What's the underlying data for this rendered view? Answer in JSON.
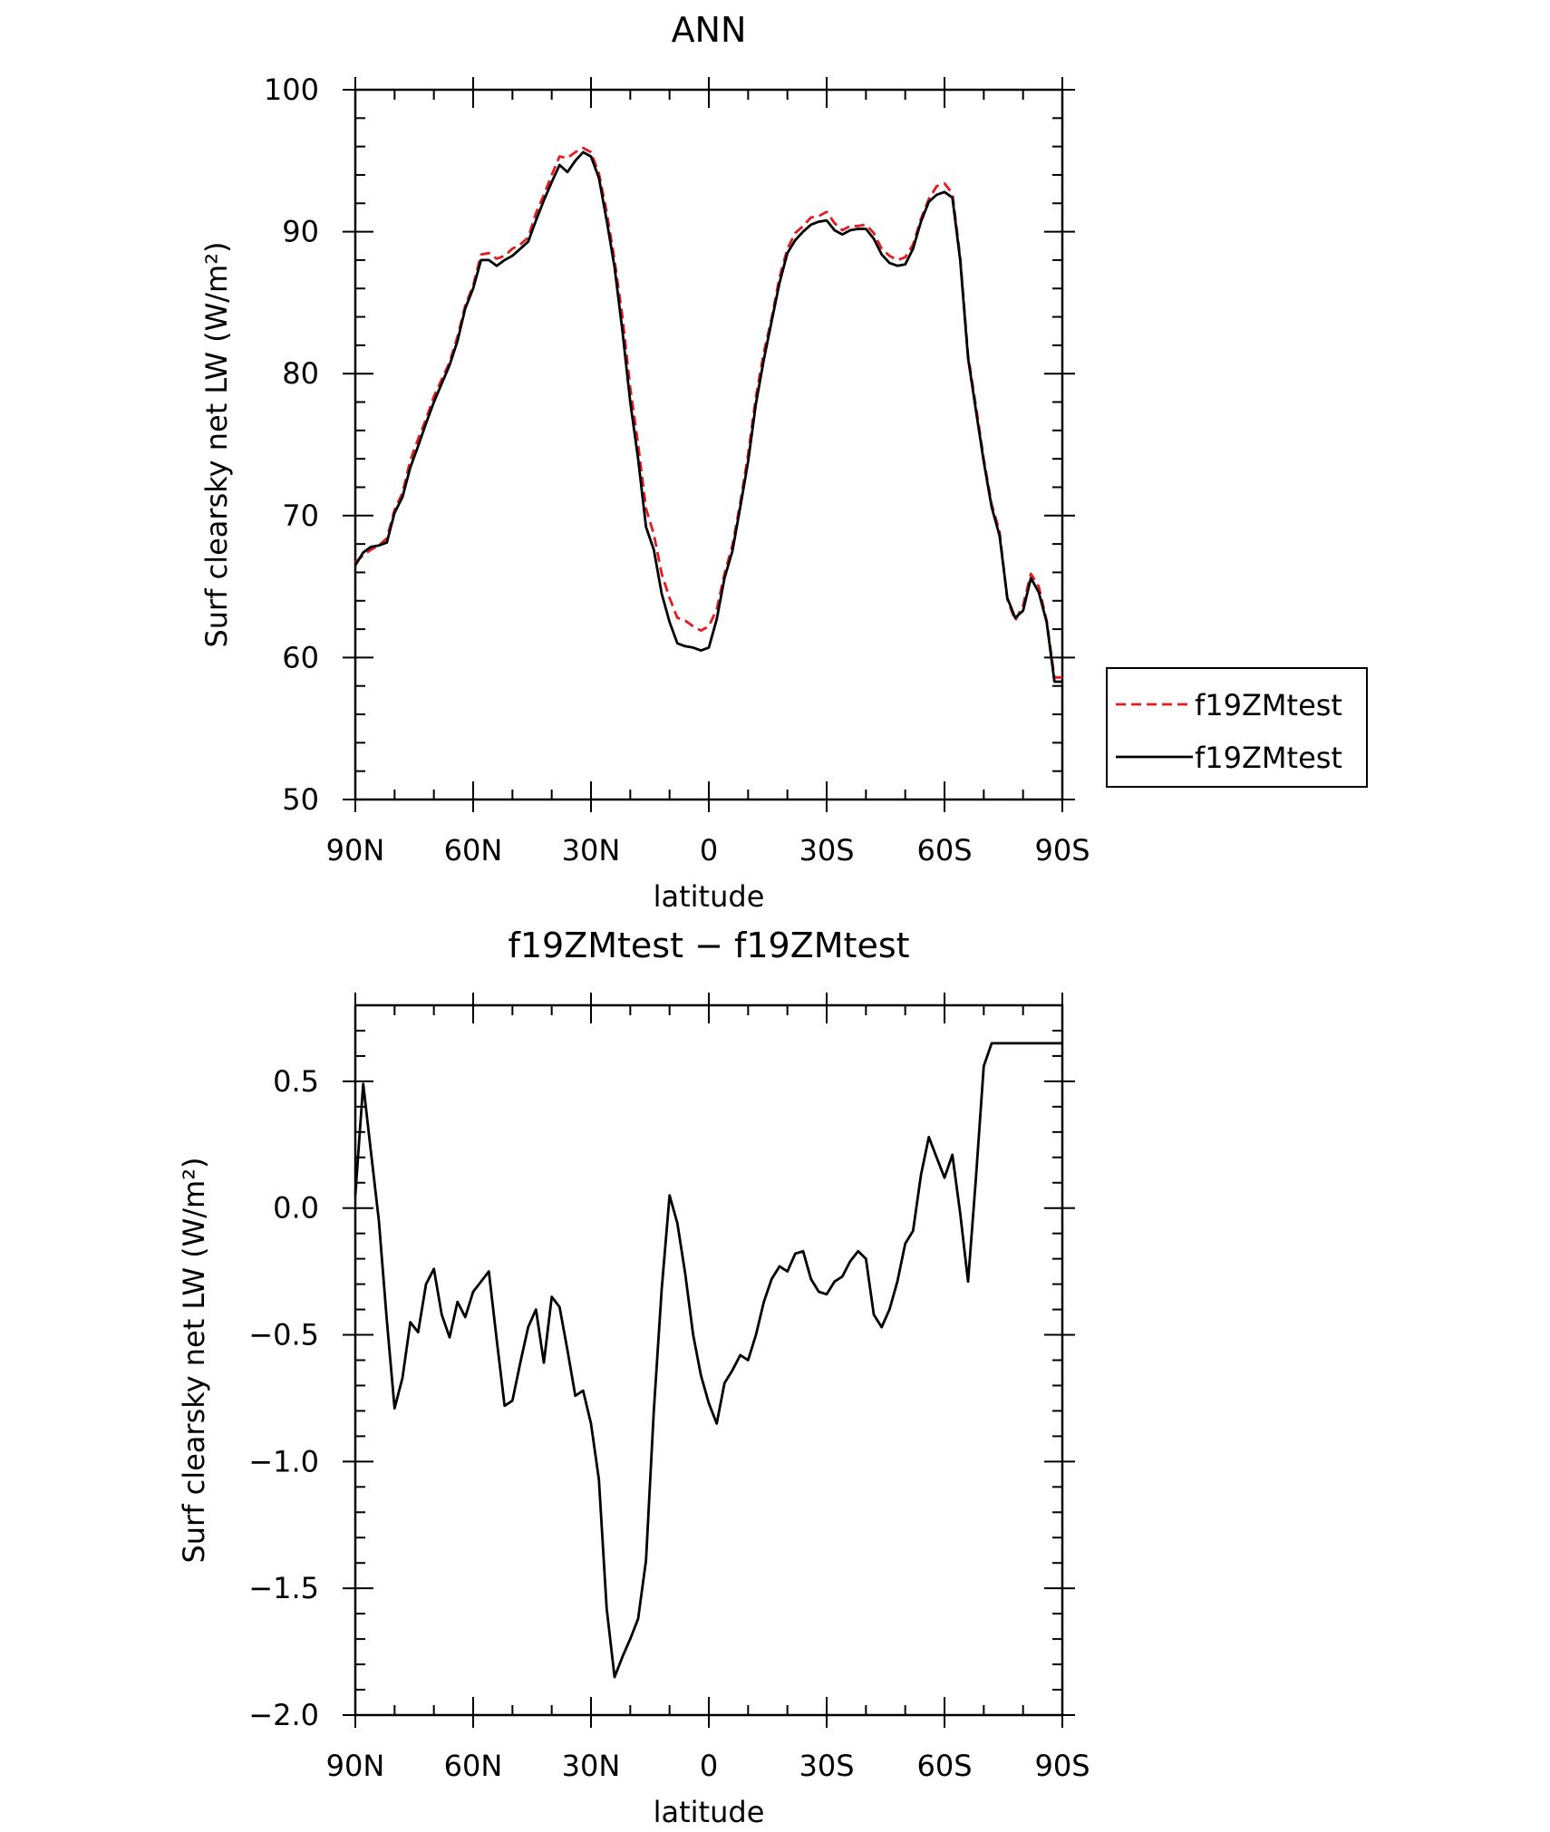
{
  "chart_data": [
    {
      "type": "line",
      "title": "ANN",
      "xlabel": "latitude",
      "ylabel": "Surf clearsky net LW (W/m²)",
      "xlim": [
        90,
        -90
      ],
      "ylim": [
        50,
        100
      ],
      "xticks": [
        90,
        60,
        30,
        0,
        -30,
        -60,
        -90
      ],
      "xtick_labels": [
        "90N",
        "60N",
        "30N",
        "0",
        "30S",
        "60S",
        "90S"
      ],
      "yticks": [
        50,
        60,
        70,
        80,
        90,
        100
      ],
      "ytick_labels": [
        "50",
        "60",
        "70",
        "80",
        "90",
        "100"
      ],
      "legend_position": "right",
      "series": [
        {
          "name": "f19ZMtest",
          "color": "#e41a1c",
          "dash": "dashed",
          "x": [
            90,
            88,
            86,
            84,
            82,
            80,
            78,
            76,
            74,
            72,
            70,
            68,
            66,
            64,
            62,
            60,
            58,
            56,
            54,
            52,
            50,
            48,
            46,
            44,
            42,
            40,
            38,
            36,
            34,
            32,
            30,
            28,
            26,
            24,
            22,
            20,
            18,
            16,
            14,
            12,
            10,
            8,
            6,
            4,
            2,
            0,
            -2,
            -4,
            -6,
            -8,
            -10,
            -12,
            -14,
            -16,
            -18,
            -20,
            -22,
            -24,
            -26,
            -28,
            -30,
            -32,
            -34,
            -36,
            -38,
            -40,
            -42,
            -44,
            -46,
            -48,
            -50,
            -52,
            -54,
            -56,
            -58,
            -60,
            -62,
            -64,
            -66,
            -68,
            -70,
            -72,
            -74,
            -76,
            -78,
            -80,
            -82,
            -84,
            -86,
            -88,
            -90
          ],
          "y": [
            66.7,
            67.2,
            67.6,
            67.9,
            68.4,
            70.4,
            71.6,
            73.9,
            75.4,
            76.8,
            78.4,
            79.6,
            80.8,
            82.6,
            84.8,
            86.2,
            88.4,
            88.5,
            88.1,
            88.3,
            88.8,
            89.1,
            89.6,
            91.3,
            92.6,
            94.0,
            95.3,
            95.2,
            95.6,
            95.9,
            95.6,
            94.1,
            91.4,
            88.0,
            84.0,
            79.0,
            75.0,
            70.5,
            68.7,
            65.9,
            64.2,
            62.8,
            62.6,
            62.2,
            61.9,
            62.2,
            63.4,
            65.9,
            67.9,
            70.9,
            74.3,
            78.4,
            81.5,
            83.9,
            86.8,
            88.8,
            89.9,
            90.4,
            91.0,
            91.1,
            91.4,
            90.6,
            90.1,
            90.4,
            90.4,
            90.5,
            89.9,
            88.8,
            88.3,
            88.0,
            88.2,
            89.1,
            90.9,
            92.3,
            93.2,
            93.4,
            92.7,
            88.2,
            81.3,
            77.7,
            74.0,
            70.8,
            68.9,
            64.1,
            62.6,
            63.7,
            65.9,
            65.0,
            62.6,
            58.6,
            58.6
          ]
        },
        {
          "name": "f19ZMtest",
          "color": "#000000",
          "dash": "solid",
          "x": [
            90,
            88,
            86,
            84,
            82,
            80,
            78,
            76,
            74,
            72,
            70,
            68,
            66,
            64,
            62,
            60,
            58,
            56,
            54,
            52,
            50,
            48,
            46,
            44,
            42,
            40,
            38,
            36,
            34,
            32,
            30,
            28,
            26,
            24,
            22,
            20,
            18,
            16,
            14,
            12,
            10,
            8,
            6,
            4,
            2,
            0,
            -2,
            -4,
            -6,
            -8,
            -10,
            -12,
            -14,
            -16,
            -18,
            -20,
            -22,
            -24,
            -26,
            -28,
            -30,
            -32,
            -34,
            -36,
            -38,
            -40,
            -42,
            -44,
            -46,
            -48,
            -50,
            -52,
            -54,
            -56,
            -58,
            -60,
            -62,
            -64,
            -66,
            -68,
            -70,
            -72,
            -74,
            -76,
            -78,
            -80,
            -82,
            -84,
            -86,
            -88,
            -90
          ],
          "y": [
            66.5,
            67.4,
            67.8,
            67.9,
            68.1,
            70.2,
            71.3,
            73.4,
            74.9,
            76.5,
            78.0,
            79.3,
            80.6,
            82.3,
            84.6,
            86.0,
            88.0,
            88.0,
            87.6,
            88.0,
            88.3,
            88.8,
            89.3,
            90.8,
            92.2,
            93.5,
            94.7,
            94.2,
            95.0,
            95.6,
            95.3,
            93.8,
            90.8,
            87.5,
            83.0,
            78.0,
            74.0,
            69.2,
            67.6,
            64.5,
            62.5,
            61.0,
            60.8,
            60.7,
            60.5,
            60.7,
            62.7,
            65.6,
            67.5,
            70.6,
            73.8,
            77.9,
            81.0,
            83.7,
            86.4,
            88.5,
            89.4,
            90.0,
            90.5,
            90.7,
            90.8,
            90.1,
            89.8,
            90.1,
            90.2,
            90.2,
            89.5,
            88.4,
            87.8,
            87.6,
            87.7,
            88.8,
            90.7,
            92.1,
            92.6,
            92.8,
            92.4,
            88.0,
            81.1,
            77.4,
            73.8,
            70.6,
            68.6,
            64.2,
            62.8,
            63.3,
            65.6,
            64.6,
            62.5,
            58.3,
            58.3
          ]
        }
      ]
    },
    {
      "type": "line",
      "title": "f19ZMtest − f19ZMtest",
      "xlabel": "latitude",
      "ylabel": "Surf clearsky net LW (W/m²)",
      "xlim": [
        90,
        -90
      ],
      "ylim": [
        -2.0,
        0.8
      ],
      "xticks": [
        90,
        60,
        30,
        0,
        -30,
        -60,
        -90
      ],
      "xtick_labels": [
        "90N",
        "60N",
        "30N",
        "0",
        "30S",
        "60S",
        "90S"
      ],
      "yticks": [
        -2.0,
        -1.5,
        -1.0,
        -0.5,
        0.0,
        0.5
      ],
      "ytick_labels": [
        "−2.0",
        "−1.5",
        "−1.0",
        "−0.5",
        "0.0",
        "0.5"
      ],
      "series": [
        {
          "name": "",
          "color": "#000000",
          "dash": "solid",
          "x": [
            90,
            88,
            86,
            84,
            82,
            80,
            78,
            76,
            74,
            72,
            70,
            68,
            66,
            64,
            62,
            60,
            58,
            56,
            54,
            52,
            50,
            48,
            46,
            44,
            42,
            40,
            38,
            36,
            34,
            32,
            30,
            28,
            26,
            24,
            22,
            20,
            18,
            16,
            14,
            12,
            10,
            8,
            6,
            4,
            2,
            0,
            -2,
            -4,
            -6,
            -8,
            -10,
            -12,
            -14,
            -16,
            -18,
            -20,
            -22,
            -24,
            -26,
            -28,
            -30,
            -32,
            -34,
            -36,
            -38,
            -40,
            -42,
            -44,
            -46,
            -48,
            -50,
            -52,
            -54,
            -56,
            -58,
            -60,
            -62,
            -64,
            -66,
            -68,
            -70,
            -72,
            -74,
            -76,
            -78,
            -80,
            -82,
            -84,
            -86,
            -88,
            -90
          ],
          "y": [
            0.05,
            0.49,
            0.22,
            -0.05,
            -0.44,
            -0.79,
            -0.67,
            -0.45,
            -0.49,
            -0.3,
            -0.24,
            -0.42,
            -0.51,
            -0.37,
            -0.43,
            -0.33,
            -0.29,
            -0.25,
            -0.52,
            -0.78,
            -0.76,
            -0.61,
            -0.47,
            -0.4,
            -0.61,
            -0.35,
            -0.39,
            -0.56,
            -0.74,
            -0.72,
            -0.85,
            -1.07,
            -1.58,
            -1.85,
            -1.77,
            -1.7,
            -1.62,
            -1.39,
            -0.8,
            -0.32,
            0.05,
            -0.06,
            -0.26,
            -0.5,
            -0.66,
            -0.77,
            -0.85,
            -0.69,
            -0.64,
            -0.58,
            -0.6,
            -0.5,
            -0.37,
            -0.28,
            -0.23,
            -0.25,
            -0.18,
            -0.17,
            -0.28,
            -0.33,
            -0.34,
            -0.29,
            -0.27,
            -0.21,
            -0.17,
            -0.2,
            -0.42,
            -0.47,
            -0.4,
            -0.29,
            -0.14,
            -0.09,
            0.13,
            0.28,
            0.2,
            0.12,
            0.21,
            -0.02,
            -0.29,
            0.12,
            0.56,
            0.65,
            0.65,
            0.65,
            0.65,
            0.65,
            0.65,
            0.65,
            0.65,
            0.65,
            0.65
          ]
        }
      ]
    }
  ]
}
